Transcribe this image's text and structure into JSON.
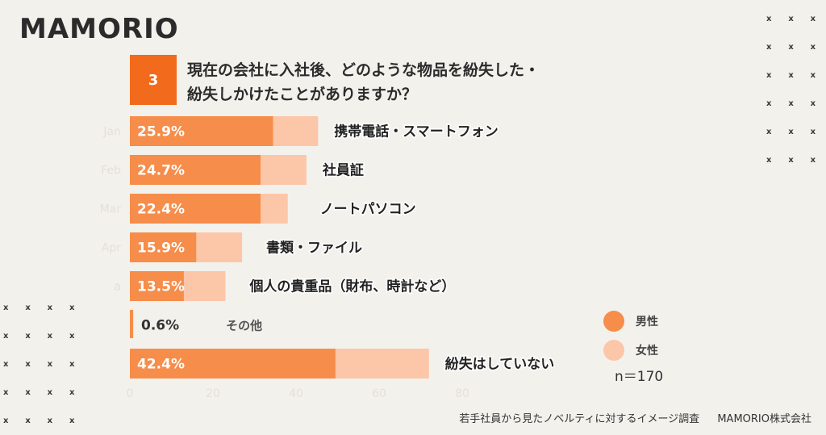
{
  "logo": "MAMORIO",
  "question": {
    "number": "3",
    "line1": "現在の会社に入社後、どのような物品を紛失した・",
    "line2": "紛失しかけたことがありますか？"
  },
  "legend": {
    "male": "男性",
    "female": "女性"
  },
  "sample": "n＝170",
  "footer": {
    "survey": "若手社員から見たノベルティに対するイメージ調査",
    "company": "MAMORIO株式会社"
  },
  "colors": {
    "male": "#f68d4a",
    "female": "#fcc6a8",
    "badge": "#f26a1b",
    "axis_text": "#e4e0d9"
  },
  "chart_data": {
    "type": "bar",
    "orientation": "horizontal",
    "stacked": true,
    "categories": [
      "携帯電話・スマートフォン",
      "社員証",
      "ノートパソコン",
      "書類・ファイル",
      "個人の貴重品（財布、時計など）",
      "その他",
      "紛失はしていない"
    ],
    "axis_category_labels": [
      "Jan",
      "Feb",
      "Mar",
      "Apr",
      "a",
      "",
      ""
    ],
    "value_labels": [
      "25.9%",
      "24.7%",
      "22.4%",
      "15.9%",
      "13.5%",
      "0.6%",
      "42.4%"
    ],
    "series": [
      {
        "name": "男性",
        "values": [
          34.5,
          31.5,
          31.5,
          16.0,
          13.0,
          0.8,
          49.5
        ]
      },
      {
        "name": "女性",
        "values": [
          10.8,
          11.0,
          6.5,
          11.0,
          10.0,
          0,
          22.5
        ]
      }
    ],
    "xticks": [
      0,
      20,
      40,
      60,
      80
    ],
    "xlim": [
      0,
      80
    ]
  }
}
